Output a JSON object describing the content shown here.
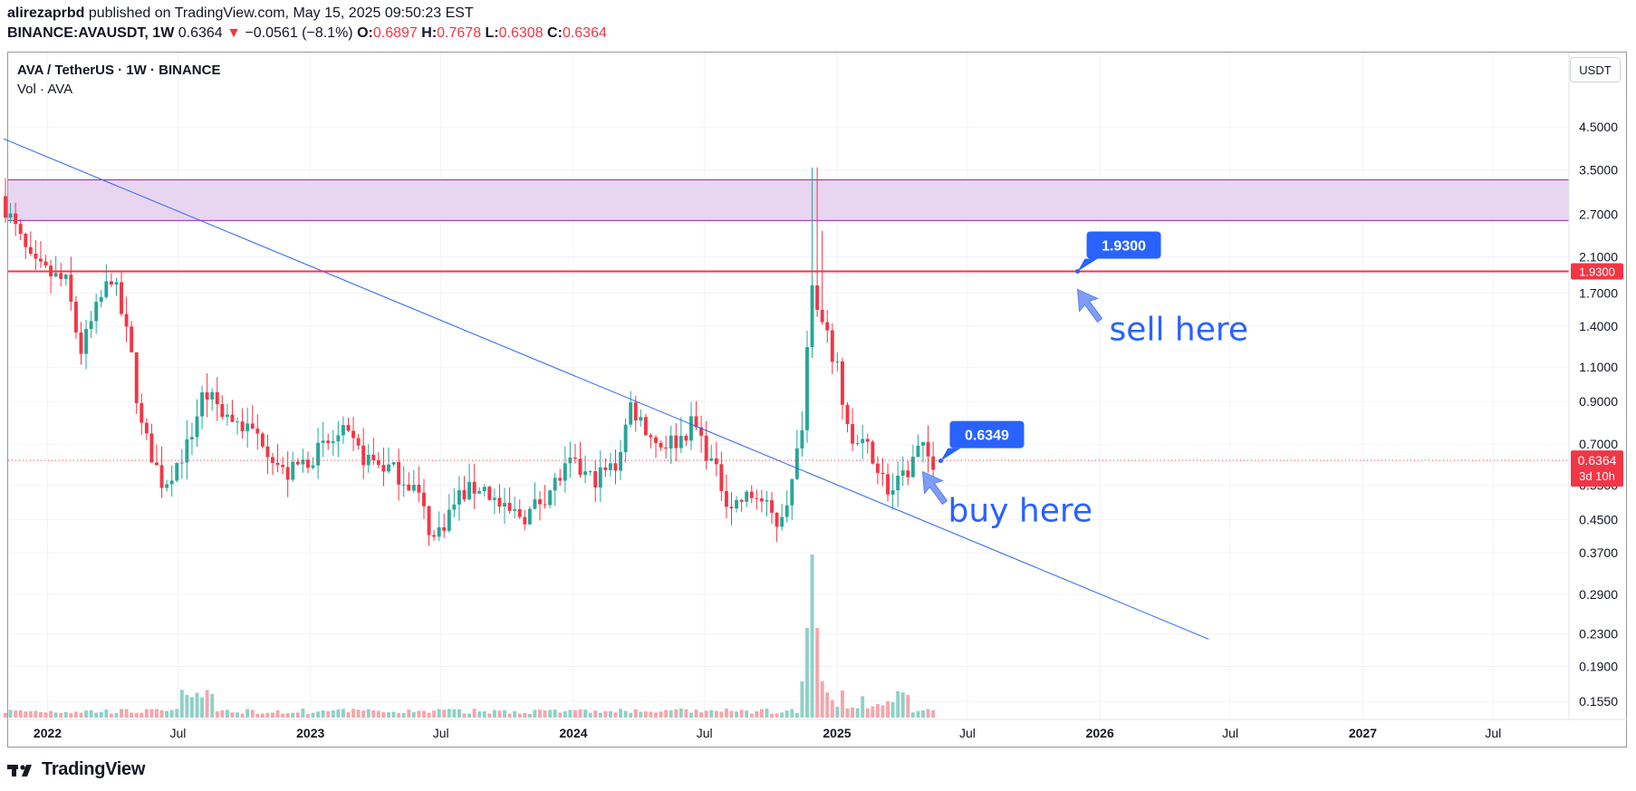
{
  "header": {
    "author": "alirezaprbd",
    "published": "published on TradingView.com, May 15, 2025 09:50:23 EST",
    "symbol_line": "BINANCE:AVAUSDT, 1W",
    "last": "0.6364",
    "change_arrow": "▼",
    "change": "−0.0561 (−8.1%)",
    "o_label": "O:",
    "o_value": "0.6897",
    "h_label": "H:",
    "h_value": "0.7678",
    "l_label": "L:",
    "l_value": "0.6308",
    "c_label": "C:",
    "c_value": "0.6364"
  },
  "legend": {
    "title": "AVA / TetherUS · 1W · BINANCE",
    "volume": "Vol · AVA"
  },
  "price_axis": {
    "unit": "USDT",
    "ticks": [
      "4.5000",
      "3.5000",
      "2.7000",
      "2.1000",
      "1.7000",
      "1.4000",
      "1.1000",
      "0.9000",
      "0.7000",
      "0.5500",
      "0.4500",
      "0.3700",
      "0.2900",
      "0.2300",
      "0.1900",
      "0.1550"
    ],
    "current_label": "0.6364",
    "countdown": "3d 10h",
    "level_label": "1.9300"
  },
  "time_axis": {
    "ticks": [
      "2022",
      "Jul",
      "2023",
      "Jul",
      "2024",
      "Jul",
      "2025",
      "Jul",
      "2026",
      "Jul",
      "2027",
      "Jul"
    ],
    "bold": [
      true,
      false,
      true,
      false,
      true,
      false,
      true,
      false,
      true,
      false,
      true,
      false
    ]
  },
  "annotations": {
    "sell_price": "1.9300",
    "sell_text": "sell here",
    "buy_price": "0.6349",
    "buy_text": "buy here"
  },
  "colors": {
    "up": "#26a69a",
    "down": "#f23645",
    "up_volume": "#8dd1c9",
    "down_volume": "#f6a5ab",
    "zone_fill": "#e8d5f0",
    "zone_border": "#9c27b0",
    "resistance": "#f23645",
    "trendline": "#2962ff",
    "callout": "#2962ff",
    "note_text": "#2962ff",
    "arrow": "#7e9ef5"
  },
  "footer": {
    "brand": "TradingView"
  },
  "chart_data": {
    "type": "candlestick",
    "scale": "log",
    "timeframe": "1W",
    "x_range": [
      "2021-11",
      "2027-12"
    ],
    "y_range": [
      0.15,
      5.2
    ],
    "zone": {
      "low": 2.6,
      "high": 3.3
    },
    "horizontal_levels": [
      1.93
    ],
    "trendline": {
      "from": {
        "date": "2021-11",
        "price": 4.2
      },
      "to": {
        "date": "2026-06",
        "price": 0.223
      }
    },
    "last_price": 0.6364,
    "anchors": [
      [
        "2021-11-01",
        3.0
      ],
      [
        "2021-12-15",
        2.0
      ],
      [
        "2022-02-01",
        1.8
      ],
      [
        "2022-02-20",
        1.2
      ],
      [
        "2022-03-15",
        1.55
      ],
      [
        "2022-04-05",
        1.9
      ],
      [
        "2022-05-01",
        1.2
      ],
      [
        "2022-05-15",
        0.78
      ],
      [
        "2022-06-15",
        0.55
      ],
      [
        "2022-07-20",
        0.7
      ],
      [
        "2022-08-10",
        0.95
      ],
      [
        "2022-09-15",
        0.82
      ],
      [
        "2022-11-01",
        0.72
      ],
      [
        "2022-12-01",
        0.58
      ],
      [
        "2023-01-20",
        0.68
      ],
      [
        "2023-02-20",
        0.74
      ],
      [
        "2023-03-20",
        0.65
      ],
      [
        "2023-05-01",
        0.6
      ],
      [
        "2023-06-01",
        0.54
      ],
      [
        "2023-06-25",
        0.4
      ],
      [
        "2023-08-01",
        0.52
      ],
      [
        "2023-09-01",
        0.55
      ],
      [
        "2023-10-01",
        0.47
      ],
      [
        "2023-11-01",
        0.46
      ],
      [
        "2023-12-01",
        0.53
      ],
      [
        "2024-01-01",
        0.62
      ],
      [
        "2024-02-01",
        0.57
      ],
      [
        "2024-03-05",
        0.62
      ],
      [
        "2024-03-25",
        0.88
      ],
      [
        "2024-05-01",
        0.7
      ],
      [
        "2024-06-01",
        0.72
      ],
      [
        "2024-06-20",
        0.8
      ],
      [
        "2024-07-20",
        0.6
      ],
      [
        "2024-08-10",
        0.49
      ],
      [
        "2024-09-15",
        0.52
      ],
      [
        "2024-10-15",
        0.44
      ],
      [
        "2024-11-05",
        0.56
      ],
      [
        "2024-11-20",
        0.85
      ],
      [
        "2024-12-01",
        1.93
      ],
      [
        "2024-12-15",
        1.42
      ],
      [
        "2025-01-05",
        1.1
      ],
      [
        "2025-01-25",
        0.7
      ],
      [
        "2025-02-20",
        0.68
      ],
      [
        "2025-03-20",
        0.52
      ],
      [
        "2025-04-10",
        0.58
      ],
      [
        "2025-05-01",
        0.69
      ],
      [
        "2025-05-15",
        0.6364
      ]
    ],
    "volume_series": "AVA",
    "volume_peak_date": "2024-11-25"
  }
}
